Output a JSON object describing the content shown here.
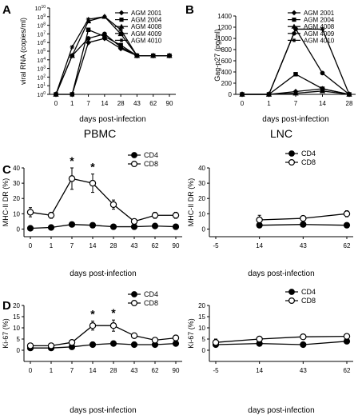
{
  "chart_data": [
    {
      "panel_letter": "A",
      "type": "line",
      "xlabel": "days post-infection",
      "ylabel": "viral RNA (copies/ml)",
      "yscale": "log",
      "ylim": [
        1,
        10000000000
      ],
      "x": [
        "0",
        "1",
        "7",
        "14",
        "28",
        "43",
        "62",
        "90"
      ],
      "legend_position": "top-right",
      "series": [
        {
          "name": "AGM 2001",
          "marker": "diamond",
          "values": [
            1,
            1,
            1000000,
            3000000,
            200000,
            30000,
            30000,
            30000
          ]
        },
        {
          "name": "AGM 2004",
          "marker": "square",
          "values": [
            1,
            1,
            30000000,
            5000000,
            500000,
            30000,
            30000,
            30000
          ]
        },
        {
          "name": "AGM 4008",
          "marker": "triangle",
          "values": [
            1,
            30000,
            300000000,
            1000000000,
            10000000,
            30000,
            30000,
            30000
          ]
        },
        {
          "name": "AGM 4009",
          "marker": "circle",
          "values": [
            1,
            30000,
            3000000,
            10000000,
            300000,
            30000,
            30000,
            30000
          ]
        },
        {
          "name": "AGM 4010",
          "marker": "star",
          "values": [
            1,
            300000,
            500000000,
            1000000000,
            30000000,
            30000,
            30000,
            30000
          ]
        }
      ]
    },
    {
      "panel_letter": "B",
      "type": "line",
      "xlabel": "days post-infection",
      "ylabel": "Gag-p27 (pg/ml)",
      "ylim": [
        0,
        1400
      ],
      "x": [
        "0",
        "1",
        "7",
        "14",
        "28"
      ],
      "legend_position": "top-right",
      "series": [
        {
          "name": "AGM 2001",
          "marker": "diamond",
          "values": [
            0,
            0,
            50,
            100,
            0
          ]
        },
        {
          "name": "AGM 2004",
          "marker": "square",
          "values": [
            0,
            0,
            360,
            100,
            0
          ]
        },
        {
          "name": "AGM 4008",
          "marker": "triangle",
          "values": [
            0,
            0,
            20,
            60,
            0
          ]
        },
        {
          "name": "AGM 4009",
          "marker": "circle",
          "values": [
            0,
            0,
            1170,
            380,
            0
          ]
        },
        {
          "name": "AGM 4010",
          "marker": "star",
          "values": [
            0,
            0,
            1165,
            1165,
            0
          ]
        }
      ]
    },
    {
      "panel_letter": "C",
      "type": "line",
      "title": "PBMC",
      "xlabel": "days post-infection",
      "ylabel": "MHC-II DR (%)",
      "ylim": [
        -5,
        40
      ],
      "x": [
        "0",
        "1",
        "7",
        "14",
        "28",
        "43",
        "62",
        "90"
      ],
      "legend_position": "top-right",
      "series": [
        {
          "name": "CD4",
          "marker": "filled-circle",
          "values": [
            0.5,
            1,
            3,
            2.5,
            1.5,
            1.5,
            2,
            1.5
          ],
          "err": [
            0.5,
            0.5,
            1,
            1,
            0.5,
            0.5,
            0.5,
            0.5
          ]
        },
        {
          "name": "CD8",
          "marker": "open-circle",
          "values": [
            11,
            9,
            33,
            30,
            16,
            5,
            9,
            9
          ],
          "err": [
            3,
            2,
            7,
            6,
            3,
            1,
            2,
            2
          ]
        }
      ],
      "annotations": [
        {
          "text": "*",
          "x": "7"
        },
        {
          "text": "*",
          "x": "14"
        }
      ]
    },
    {
      "panel_letter": "",
      "type": "line",
      "title": "LNC",
      "xlabel": "days post-infection",
      "ylabel": "MHC-II DR (%)",
      "ylim": [
        -5,
        40
      ],
      "x": [
        "-5",
        "14",
        "43",
        "62"
      ],
      "legend_position": "top-right",
      "series": [
        {
          "name": "CD4",
          "marker": "filled-circle",
          "values": [
            null,
            2.5,
            3,
            2.5
          ],
          "err": [
            0,
            1,
            0.5,
            0.5
          ]
        },
        {
          "name": "CD8",
          "marker": "open-circle",
          "values": [
            null,
            6,
            7,
            10
          ],
          "err": [
            0,
            3,
            1.5,
            2
          ]
        }
      ]
    },
    {
      "panel_letter": "D",
      "type": "line",
      "xlabel": "days post-infection",
      "ylabel": "Ki-67 (%)",
      "ylim": [
        -5,
        20
      ],
      "x": [
        "0",
        "1",
        "7",
        "14",
        "28",
        "43",
        "62",
        "90"
      ],
      "legend_position": "top-right",
      "series": [
        {
          "name": "CD4",
          "marker": "filled-circle",
          "values": [
            1,
            1,
            1.5,
            2.5,
            3,
            2.5,
            2.5,
            3
          ],
          "err": [
            0.3,
            0.3,
            0.3,
            0.5,
            0.5,
            0.3,
            0.3,
            0.3
          ]
        },
        {
          "name": "CD8",
          "marker": "open-circle",
          "values": [
            2,
            2,
            3.5,
            11,
            11,
            6.5,
            4.5,
            5.5
          ],
          "err": [
            0.5,
            0.5,
            0.8,
            2,
            2.5,
            1,
            0.5,
            0.3
          ]
        }
      ],
      "annotations": [
        {
          "text": "*",
          "x": "14"
        },
        {
          "text": "*",
          "x": "28"
        }
      ]
    },
    {
      "panel_letter": "",
      "type": "line",
      "xlabel": "days post-infection",
      "ylabel": "Ki-67 (%)",
      "ylim": [
        -5,
        20
      ],
      "x": [
        "-5",
        "14",
        "43",
        "62"
      ],
      "legend_position": "top-right",
      "series": [
        {
          "name": "CD4",
          "marker": "filled-circle",
          "values": [
            2.5,
            3,
            2.5,
            4
          ],
          "err": [
            0.5,
            1,
            0.5,
            0.5
          ]
        },
        {
          "name": "CD8",
          "marker": "open-circle",
          "values": [
            3.5,
            5,
            6,
            6.2
          ],
          "err": [
            1.5,
            0.5,
            1,
            0.5
          ]
        }
      ]
    }
  ]
}
